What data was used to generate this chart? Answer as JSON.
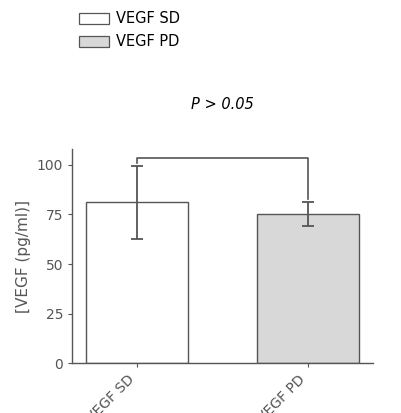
{
  "categories": [
    "VEGF SD",
    "VEGF PD"
  ],
  "values": [
    81.0,
    75.0
  ],
  "errors": [
    18.5,
    6.0
  ],
  "bar_colors": [
    "#ffffff",
    "#d8d8d8"
  ],
  "bar_edgecolors": [
    "#555555",
    "#555555"
  ],
  "bar_width": 0.6,
  "ylabel": "[VEGF (pg/ml)]",
  "ylim": [
    0,
    108
  ],
  "yticks": [
    0,
    25,
    50,
    75,
    100
  ],
  "legend_labels": [
    "VEGF SD",
    "VEGF PD"
  ],
  "legend_colors": [
    "#ffffff",
    "#d8d8d8"
  ],
  "significance_text": "P > 0.05",
  "background_color": "#ffffff",
  "tick_label_fontsize": 10,
  "ylabel_fontsize": 11,
  "legend_fontsize": 10.5,
  "bar_positions": [
    0,
    1
  ],
  "errorbar_capsize": 4,
  "errorbar_linewidth": 1.3,
  "errorbar_color": "#555555",
  "spine_color": "#555555"
}
